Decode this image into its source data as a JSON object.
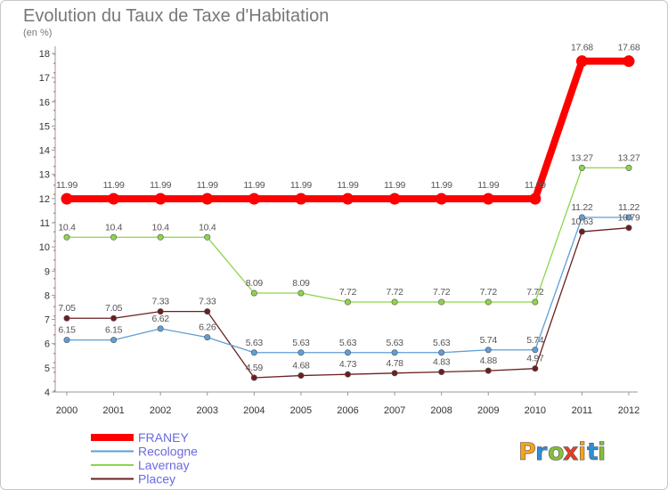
{
  "chart_data": {
    "type": "line",
    "title": "Evolution du Taux de Taxe d'Habitation",
    "subtitle": "(en %)",
    "categories": [
      "2000",
      "2001",
      "2002",
      "2003",
      "2004",
      "2005",
      "2006",
      "2007",
      "2008",
      "2009",
      "2010",
      "2011",
      "2012"
    ],
    "ylim": [
      4,
      18
    ],
    "yticks": [
      4,
      5,
      6,
      7,
      8,
      9,
      10,
      11,
      12,
      13,
      14,
      15,
      16,
      17,
      18
    ],
    "series": [
      {
        "name": "FRANEY",
        "color": "#ff0000",
        "values": [
          11.99,
          11.99,
          11.99,
          11.99,
          11.99,
          11.99,
          11.99,
          11.99,
          11.99,
          11.99,
          11.99,
          17.68,
          17.68
        ]
      },
      {
        "name": "Recologne",
        "color": "#5f9ed6",
        "values": [
          6.15,
          6.15,
          6.62,
          6.26,
          5.63,
          5.63,
          5.63,
          5.63,
          5.63,
          5.74,
          5.74,
          11.22,
          11.22
        ]
      },
      {
        "name": "Lavernay",
        "color": "#8ed44e",
        "values": [
          10.4,
          10.4,
          10.4,
          10.4,
          8.09,
          8.09,
          7.72,
          7.72,
          7.72,
          7.72,
          7.72,
          13.27,
          13.27
        ]
      },
      {
        "name": "Placey",
        "color": "#6b1f1f",
        "values": [
          7.05,
          7.05,
          7.33,
          7.33,
          4.59,
          4.68,
          4.73,
          4.78,
          4.83,
          4.88,
          4.97,
          10.63,
          10.79
        ]
      }
    ],
    "legend_position": "bottom-left"
  },
  "brand": {
    "letters": [
      "P",
      "r",
      "o",
      "x",
      "i",
      "t",
      "i"
    ],
    "colors": [
      "#f7a21b",
      "#2f8fd4",
      "#86bf3b",
      "#e83b25",
      "#f7a21b",
      "#2f8fd4",
      "#86bf3b"
    ]
  }
}
